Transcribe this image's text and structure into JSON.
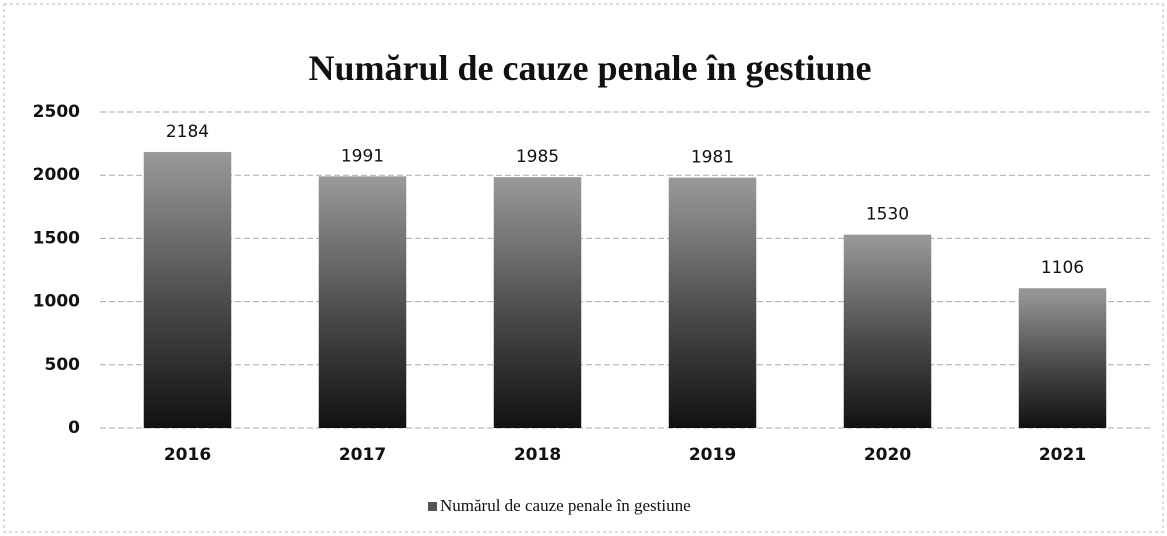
{
  "chart_data": {
    "type": "bar",
    "title": "Numărul de cauze penale în gestiune",
    "categories": [
      "2016",
      "2017",
      "2018",
      "2019",
      "2020",
      "2021"
    ],
    "series": [
      {
        "name": "Numărul de cauze penale în gestiune",
        "color": "#555555",
        "values": [
          2184,
          1991,
          1985,
          1981,
          1530,
          1106
        ]
      }
    ],
    "ylim": [
      0,
      2500
    ],
    "yticks": [
      0,
      500,
      1000,
      1500,
      2000,
      2500
    ],
    "grid": true,
    "legend": "bottom"
  }
}
